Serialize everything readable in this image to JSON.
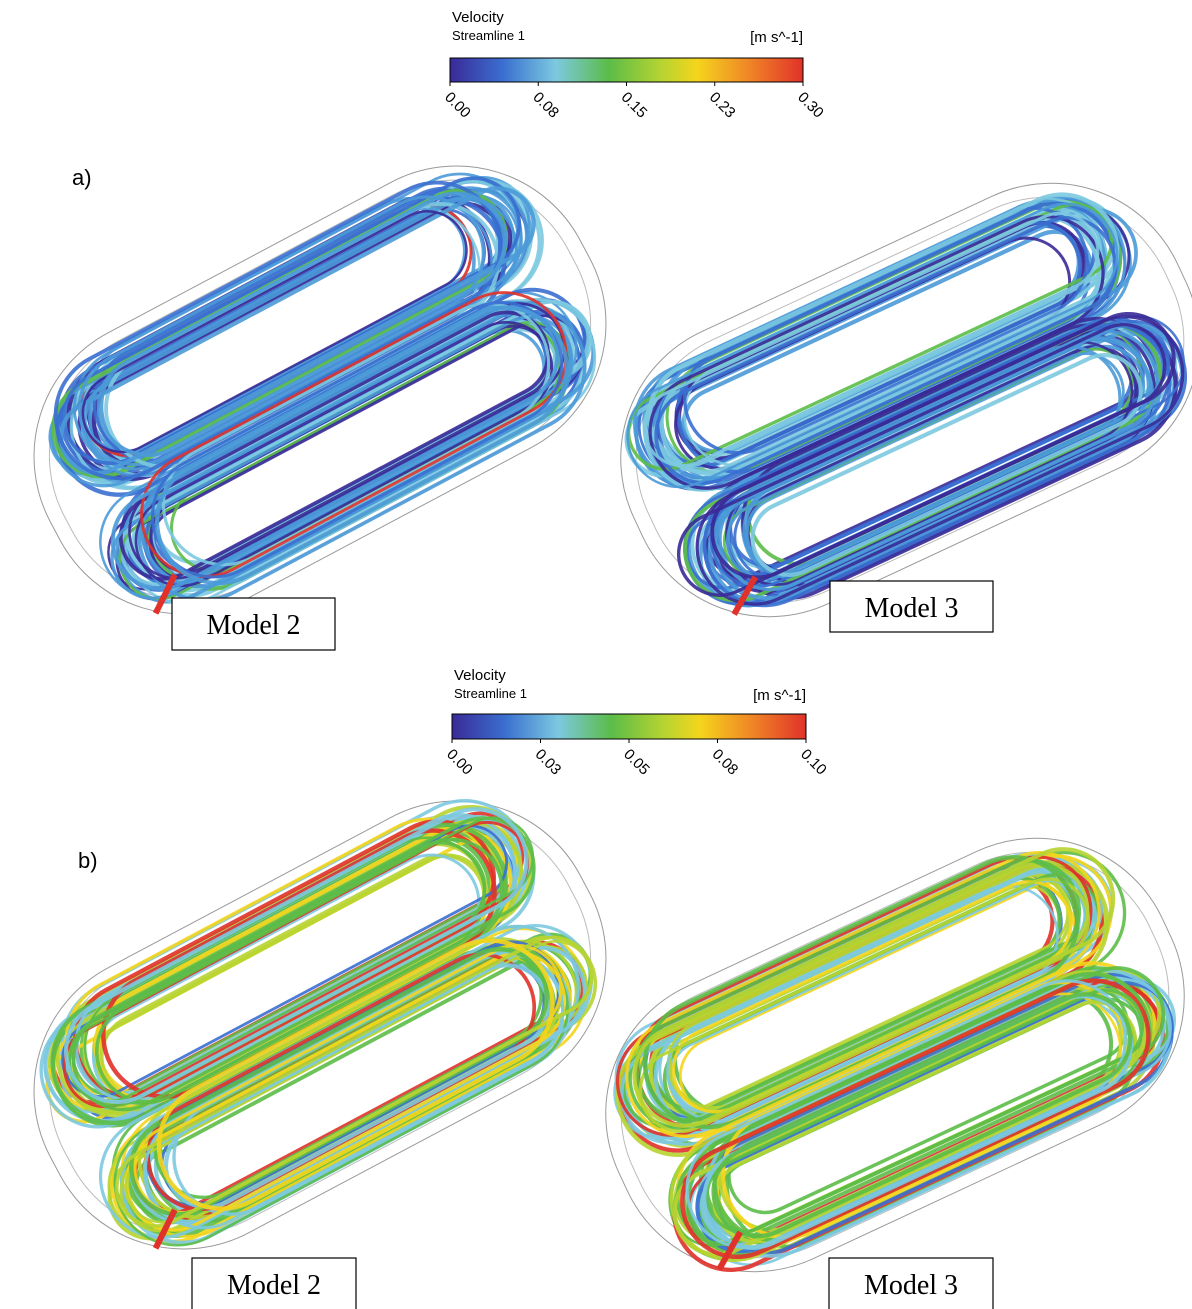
{
  "panels": [
    {
      "label": "a)",
      "colorbar": {
        "title": "Velocity",
        "subtitle": "Streamline 1",
        "unit": "[m s^-1]",
        "lim": [
          0,
          0.3
        ],
        "ticks": [
          {
            "value": 0,
            "label": "0.00"
          },
          {
            "value": 0.075,
            "label": "0.08"
          },
          {
            "value": 0.15,
            "label": "0.15"
          },
          {
            "value": 0.225,
            "label": "0.23"
          },
          {
            "value": 0.3,
            "label": "0.30"
          }
        ]
      },
      "models": [
        "Model 2",
        "Model 3"
      ]
    },
    {
      "label": "b)",
      "colorbar": {
        "title": "Velocity",
        "subtitle": "Streamline 1",
        "unit": "[m s^-1]",
        "lim": [
          0,
          0.1
        ],
        "ticks": [
          {
            "value": 0,
            "label": "0.00"
          },
          {
            "value": 0.025,
            "label": "0.03"
          },
          {
            "value": 0.05,
            "label": "0.05"
          },
          {
            "value": 0.075,
            "label": "0.08"
          },
          {
            "value": 0.1,
            "label": "0.10"
          }
        ]
      },
      "models": [
        "Model 2",
        "Model 3"
      ]
    }
  ]
}
